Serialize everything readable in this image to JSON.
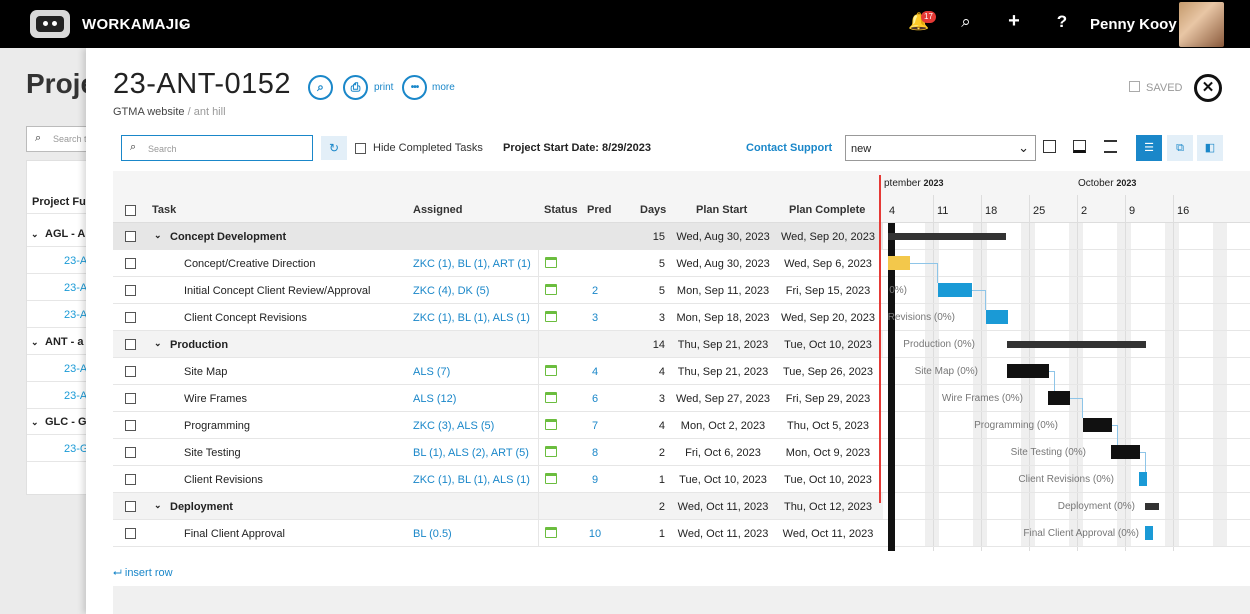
{
  "topbar": {
    "brand": "WORKAMAJIG",
    "notifications": "17",
    "user": "Penny Kooy"
  },
  "background": {
    "title": "Proje",
    "search_placeholder": "Search t",
    "column_header": "Project Ful",
    "rows": [
      {
        "type": "group",
        "text": "AGL - A"
      },
      {
        "type": "link",
        "text": "23-A"
      },
      {
        "type": "link",
        "text": "23-A"
      },
      {
        "type": "link",
        "text": "23-A"
      },
      {
        "type": "group",
        "text": "ANT - a"
      },
      {
        "type": "link",
        "text": "23-A"
      },
      {
        "type": "link",
        "text": "23-A"
      },
      {
        "type": "group",
        "text": "GLC - G"
      },
      {
        "type": "link",
        "text": "23-G"
      }
    ]
  },
  "project": {
    "id": "23-ANT-0152",
    "client": "GTMA website",
    "separator": "/",
    "subtitle": "ant hill",
    "print_label": "print",
    "more_label": "more",
    "saved_label": "SAVED"
  },
  "toolbar": {
    "search_placeholder": "Search",
    "hide_completed": "Hide Completed Tasks",
    "project_start": "Project Start Date: 8/29/2023",
    "contact_support": "Contact Support",
    "view_select": "new"
  },
  "grid": {
    "headers": {
      "task": "Task",
      "assigned": "Assigned",
      "status": "Status",
      "pred": "Pred",
      "days": "Days",
      "plan_start": "Plan Start",
      "plan_complete": "Plan Complete"
    },
    "rows": [
      {
        "group": true,
        "task": "Concept Development",
        "assigned": "",
        "pred": "",
        "days": "15",
        "start": "Wed, Aug 30, 2023",
        "end": "Wed, Sep 20, 2023"
      },
      {
        "group": false,
        "task": "Concept/Creative Direction",
        "assigned": "ZKC (1), BL (1), ART (1)",
        "pred": "",
        "days": "5",
        "start": "Wed, Aug 30, 2023",
        "end": "Wed, Sep 6, 2023"
      },
      {
        "group": false,
        "task": "Initial Concept Client Review/Approval",
        "assigned": "ZKC (4), DK (5)",
        "pred": "2",
        "days": "5",
        "start": "Mon, Sep 11, 2023",
        "end": "Fri, Sep 15, 2023"
      },
      {
        "group": false,
        "task": "Client Concept Revisions",
        "assigned": "ZKC (1), BL (1), ALS (1)",
        "pred": "3",
        "days": "3",
        "start": "Mon, Sep 18, 2023",
        "end": "Wed, Sep 20, 2023"
      },
      {
        "group": true,
        "task": "Production",
        "assigned": "",
        "pred": "",
        "days": "14",
        "start": "Thu, Sep 21, 2023",
        "end": "Tue, Oct 10, 2023"
      },
      {
        "group": false,
        "task": "Site Map",
        "assigned": "ALS (7)",
        "pred": "4",
        "days": "4",
        "start": "Thu, Sep 21, 2023",
        "end": "Tue, Sep 26, 2023"
      },
      {
        "group": false,
        "task": "Wire Frames",
        "assigned": "ALS (12)",
        "pred": "6",
        "days": "3",
        "start": "Wed, Sep 27, 2023",
        "end": "Fri, Sep 29, 2023"
      },
      {
        "group": false,
        "task": "Programming",
        "assigned": "ZKC (3), ALS (5)",
        "pred": "7",
        "days": "4",
        "start": "Mon, Oct 2, 2023",
        "end": "Thu, Oct 5, 2023"
      },
      {
        "group": false,
        "task": "Site Testing",
        "assigned": "BL (1), ALS (2), ART (5)",
        "pred": "8",
        "days": "2",
        "start": "Fri, Oct 6, 2023",
        "end": "Mon, Oct 9, 2023"
      },
      {
        "group": false,
        "task": "Client Revisions",
        "assigned": "ZKC (1), BL (1), ALS (1)",
        "pred": "9",
        "days": "1",
        "start": "Tue, Oct 10, 2023",
        "end": "Tue, Oct 10, 2023"
      },
      {
        "group": true,
        "task": "Deployment",
        "assigned": "",
        "pred": "",
        "days": "2",
        "start": "Wed, Oct 11, 2023",
        "end": "Thu, Oct 12, 2023"
      },
      {
        "group": false,
        "task": "Final Client Approval",
        "assigned": "BL (0.5)",
        "pred": "10",
        "days": "1",
        "start": "Wed, Oct 11, 2023",
        "end": "Wed, Oct 11, 2023"
      }
    ],
    "insert_row": "insert row"
  },
  "gantt": {
    "months": [
      {
        "name": "ptember",
        "year": "2023"
      },
      {
        "name": "October",
        "year": "2023"
      }
    ],
    "weeks": [
      "4",
      "11",
      "18",
      "25",
      "2",
      "9",
      "16"
    ],
    "labels": [
      "",
      "",
      "0%)",
      "Revisions (0%)",
      "Production (0%)",
      "Site Map (0%)",
      "Wire Frames (0%)",
      "Programming (0%)",
      "Site Testing (0%)",
      "Client Revisions (0%)",
      "Deployment (0%)",
      "Final Client Approval (0%)"
    ],
    "colors": {
      "summary": "#333333",
      "task_blue": "#1a9ad6",
      "task_black": "#111111",
      "task_yellow": "#f3c84b",
      "today": "#e53935"
    }
  }
}
